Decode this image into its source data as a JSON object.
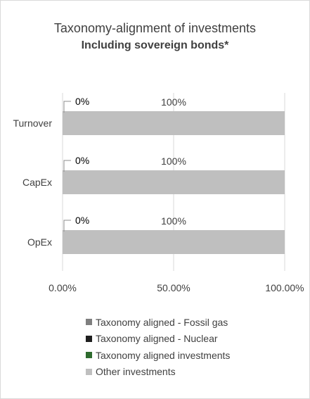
{
  "chart_data": {
    "type": "bar",
    "orientation": "horizontal",
    "stacked": true,
    "title": "Taxonomy-alignment of investments",
    "subtitle": "Including sovereign bonds*",
    "categories": [
      "Turnover",
      "CapEx",
      "OpEx"
    ],
    "series": [
      {
        "name": "Taxonomy aligned - Fossil gas",
        "color": "#7f7f7f",
        "values": [
          0,
          0,
          0
        ]
      },
      {
        "name": "Taxonomy aligned - Nuclear",
        "color": "#1f1f1f",
        "values": [
          0,
          0,
          0
        ]
      },
      {
        "name": "Taxonomy aligned investments",
        "color": "#2e6b2e",
        "values": [
          0,
          0,
          0
        ]
      },
      {
        "name": "Other investments",
        "color": "#bfbfbf",
        "values": [
          100,
          100,
          100
        ]
      }
    ],
    "data_labels": [
      {
        "category": "Turnover",
        "aligned": "0%",
        "other": "100%"
      },
      {
        "category": "CapEx",
        "aligned": "0%",
        "other": "100%"
      },
      {
        "category": "OpEx",
        "aligned": "0%",
        "other": "100%"
      }
    ],
    "x_ticks": [
      "0.00%",
      "50.00%",
      "100.00%"
    ],
    "xlim": [
      0,
      100
    ],
    "grid": true,
    "legend_position": "bottom"
  }
}
